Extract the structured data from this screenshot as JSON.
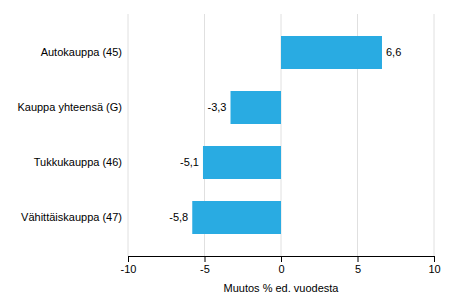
{
  "chart_data": {
    "type": "bar",
    "orientation": "horizontal",
    "categories": [
      "Vähittäiskauppa (47)",
      "Tukkukauppa (46)",
      "Kauppa yhteensä (G)",
      "Autokauppa (45)"
    ],
    "values": [
      -5.8,
      -5.1,
      -3.3,
      6.6
    ],
    "value_labels": [
      "-5,8",
      "-5,1",
      "-3,3",
      "6,6"
    ],
    "data_labels": true,
    "color": "#29abe2",
    "xlabel": "Muutos % ed. vuodesta",
    "xlim": [
      -10,
      10
    ],
    "xticks": [
      -10,
      -5,
      0,
      5,
      10
    ],
    "grid": true
  }
}
